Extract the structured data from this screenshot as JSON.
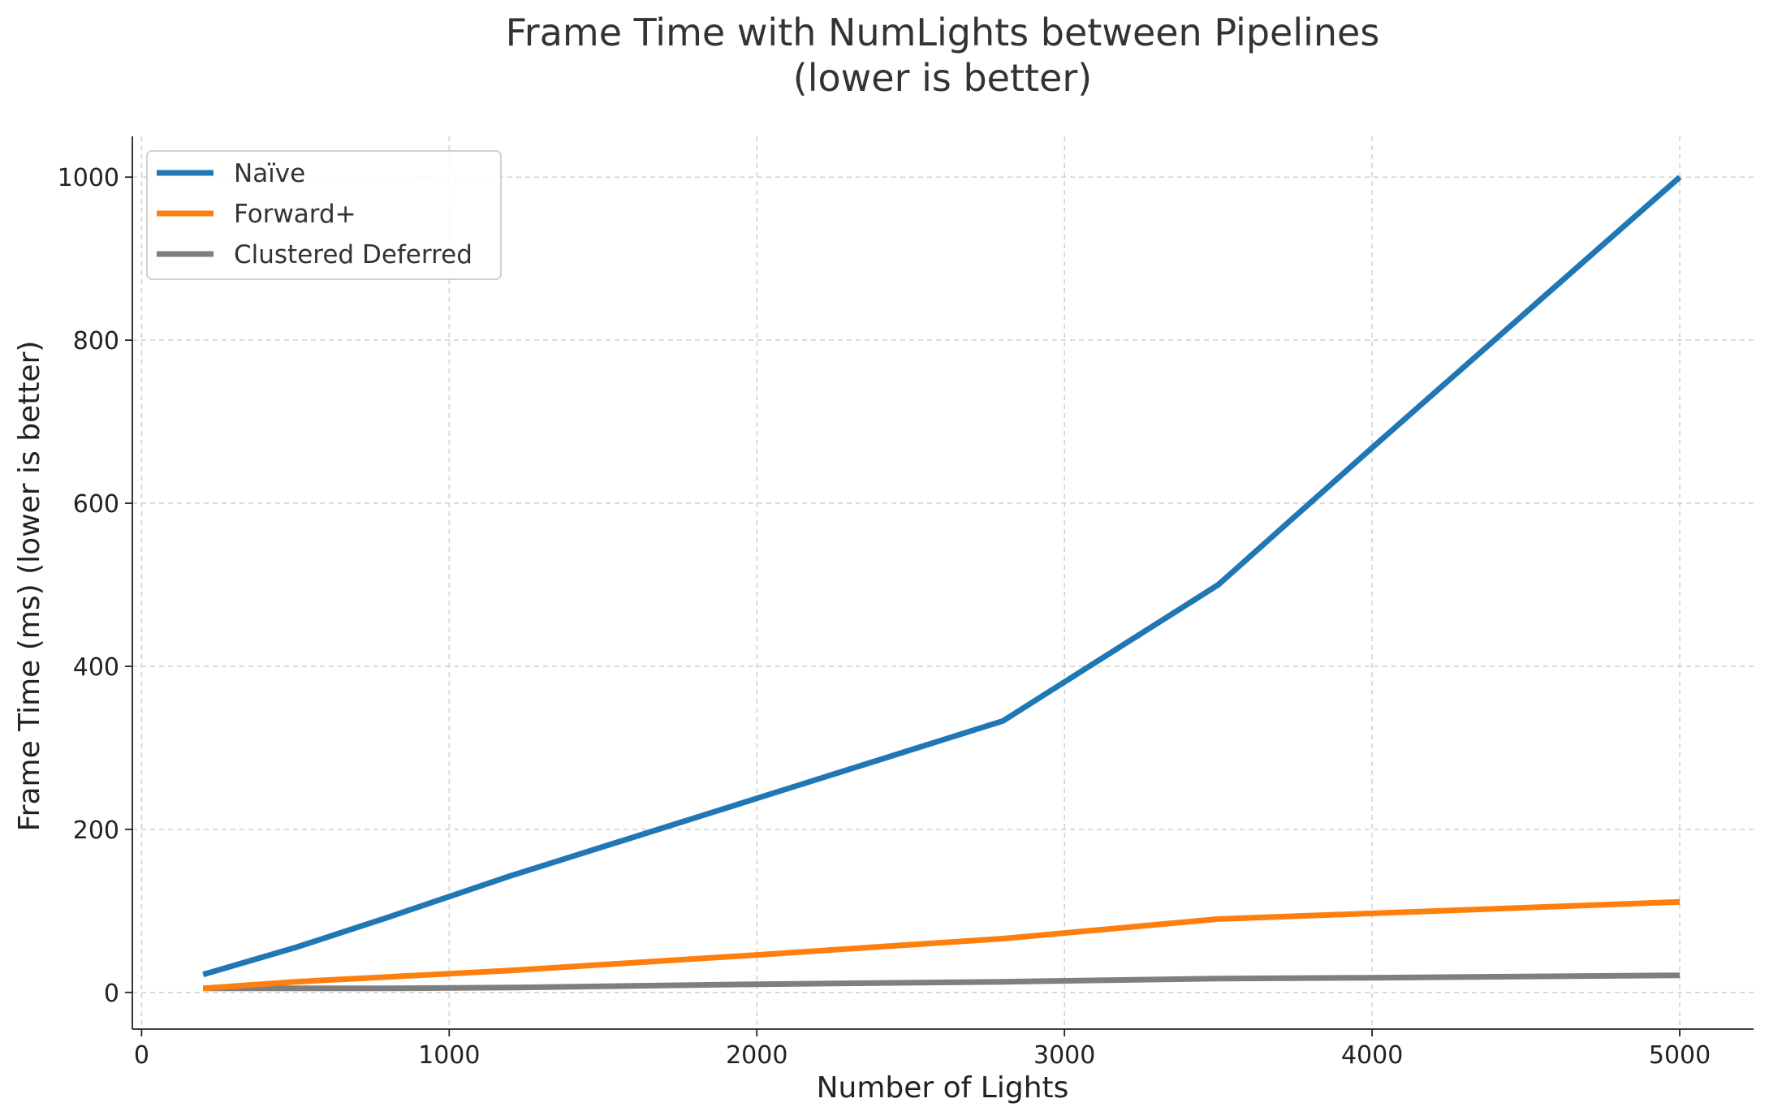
{
  "chart_data": {
    "type": "line",
    "title_line1": "Frame Time with NumLights between Pipelines",
    "title_line2": "(lower is better)",
    "xlabel": "Number of Lights",
    "ylabel": "Frame Time (ms) (lower is better)",
    "xlim": [
      -30,
      5240
    ],
    "ylim": [
      -45,
      1050
    ],
    "xticks": [
      0,
      1000,
      2000,
      3000,
      4000,
      5000
    ],
    "yticks": [
      0,
      200,
      400,
      600,
      800,
      1000
    ],
    "grid": true,
    "legend_position": "top-left",
    "series": [
      {
        "name": "Naïve",
        "color": "#1f77b4",
        "x": [
          200,
          500,
          800,
          1200,
          2000,
          2800,
          3500,
          4000,
          5000
        ],
        "y": [
          22,
          55,
          92,
          143,
          238,
          333,
          500,
          668,
          1000
        ]
      },
      {
        "name": "Forward+",
        "color": "#ff7f0e",
        "x": [
          200,
          500,
          800,
          1200,
          2000,
          2800,
          3500,
          4000,
          5000
        ],
        "y": [
          5,
          13,
          19,
          27,
          46,
          66,
          90,
          97,
          111
        ]
      },
      {
        "name": "Clustered Deferred",
        "color": "#7f7f7f",
        "x": [
          200,
          500,
          800,
          1200,
          2000,
          2800,
          3500,
          4000,
          5000
        ],
        "y": [
          5,
          5,
          5,
          6,
          10,
          13,
          17,
          18,
          21
        ]
      }
    ]
  }
}
